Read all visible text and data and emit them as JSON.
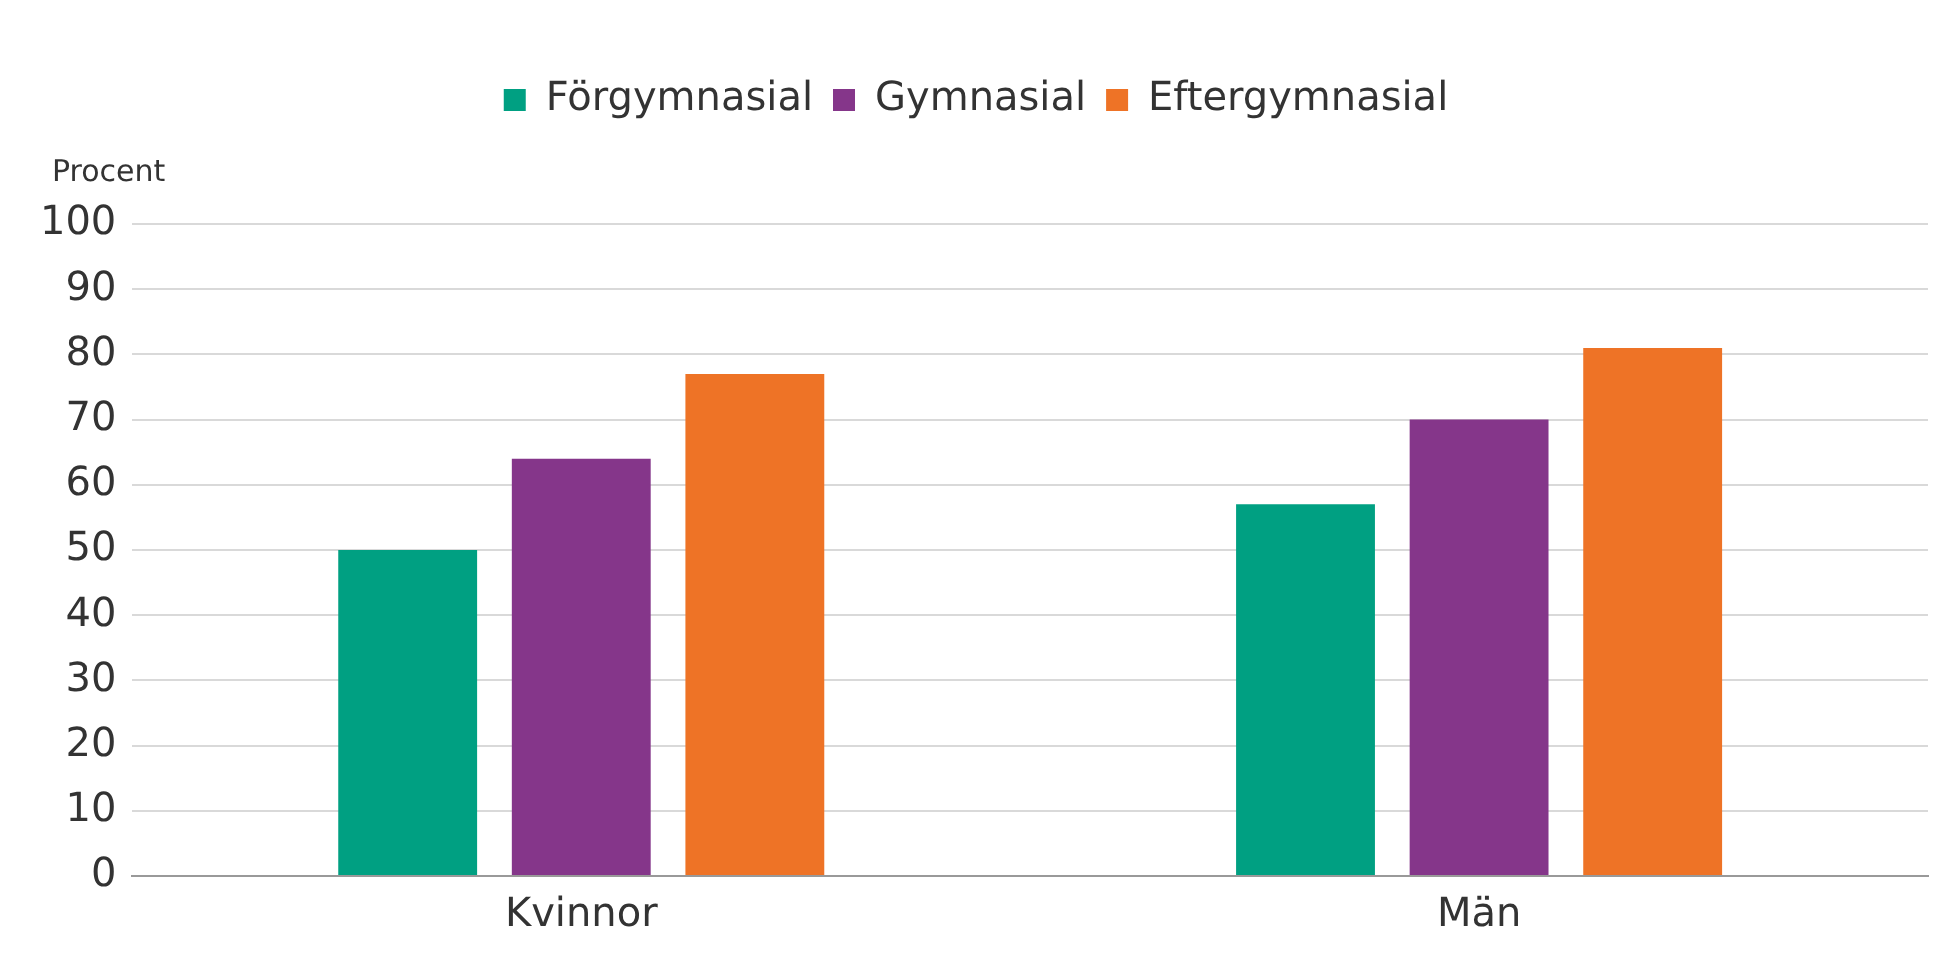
{
  "chart_data": {
    "type": "bar",
    "ylabel": "Procent",
    "categories": [
      "Kvinnor",
      "Män"
    ],
    "series": [
      {
        "name": "Förgymnasial",
        "color": "#00a082",
        "values": [
          50,
          57
        ]
      },
      {
        "name": "Gymnasial",
        "color": "#85368a",
        "values": [
          64,
          70
        ]
      },
      {
        "name": "Eftergymnasial",
        "color": "#ee7326",
        "values": [
          77,
          81
        ]
      }
    ],
    "ylim": [
      0,
      100
    ],
    "yticks": [
      0,
      10,
      20,
      30,
      40,
      50,
      60,
      70,
      80,
      90,
      100
    ],
    "grid": "y",
    "legend": "top"
  }
}
